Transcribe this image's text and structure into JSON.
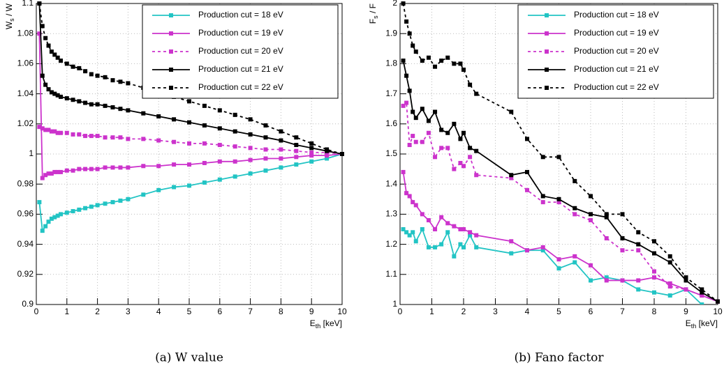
{
  "chart_data": [
    {
      "type": "line",
      "caption": "(a) W value",
      "xlabel": [
        "E",
        "th",
        " [keV]"
      ],
      "ylabel": [
        "W",
        "s",
        " / W"
      ],
      "xlim": [
        0,
        10
      ],
      "ylim": [
        0.9,
        1.1
      ],
      "xticks": [
        0,
        1,
        2,
        3,
        4,
        5,
        6,
        7,
        8,
        9,
        10
      ],
      "yticks": [
        0.9,
        0.92,
        0.94,
        0.96,
        0.98,
        1,
        1.02,
        1.04,
        1.06,
        1.08,
        1.1
      ],
      "grid": true,
      "legend": "upper right",
      "x": [
        0.1,
        0.2,
        0.3,
        0.4,
        0.5,
        0.6,
        0.7,
        0.8,
        1,
        1.2,
        1.4,
        1.6,
        1.8,
        2,
        2.25,
        2.5,
        2.75,
        3,
        3.5,
        4,
        4.5,
        5,
        5.5,
        6,
        6.5,
        7,
        7.5,
        8,
        8.5,
        9,
        9.5,
        10
      ],
      "series": [
        {
          "name": "Production cut = 18 eV",
          "color": "#22c4c4",
          "dashed": false,
          "values": [
            0.968,
            0.949,
            0.952,
            0.955,
            0.957,
            0.958,
            0.959,
            0.96,
            0.961,
            0.962,
            0.963,
            0.964,
            0.965,
            0.966,
            0.967,
            0.968,
            0.969,
            0.97,
            0.973,
            0.976,
            0.978,
            0.979,
            0.981,
            0.983,
            0.985,
            0.987,
            0.989,
            0.991,
            0.993,
            0.995,
            0.997,
            1.0
          ]
        },
        {
          "name": "Production cut = 19 eV",
          "color": "#cc33cc",
          "dashed": false,
          "values": [
            1.08,
            0.984,
            0.986,
            0.987,
            0.987,
            0.988,
            0.988,
            0.988,
            0.989,
            0.989,
            0.99,
            0.99,
            0.99,
            0.99,
            0.991,
            0.991,
            0.991,
            0.991,
            0.992,
            0.992,
            0.993,
            0.993,
            0.994,
            0.995,
            0.995,
            0.996,
            0.997,
            0.997,
            0.998,
            0.999,
            0.999,
            1.0
          ]
        },
        {
          "name": "Production cut = 20 eV",
          "color": "#cc33cc",
          "dashed": true,
          "values": [
            1.018,
            1.017,
            1.016,
            1.016,
            1.015,
            1.015,
            1.014,
            1.014,
            1.014,
            1.013,
            1.013,
            1.012,
            1.012,
            1.012,
            1.011,
            1.011,
            1.011,
            1.01,
            1.01,
            1.009,
            1.008,
            1.007,
            1.007,
            1.006,
            1.005,
            1.004,
            1.003,
            1.003,
            1.002,
            1.001,
            1.001,
            1.0
          ]
        },
        {
          "name": "Production cut = 21 eV",
          "color": "#000000",
          "dashed": false,
          "values": [
            1.1,
            1.052,
            1.046,
            1.043,
            1.041,
            1.04,
            1.039,
            1.038,
            1.037,
            1.036,
            1.035,
            1.034,
            1.033,
            1.033,
            1.032,
            1.031,
            1.03,
            1.029,
            1.027,
            1.025,
            1.023,
            1.021,
            1.019,
            1.017,
            1.015,
            1.013,
            1.011,
            1.009,
            1.006,
            1.004,
            1.002,
            1.0
          ]
        },
        {
          "name": "Production cut = 22 eV",
          "color": "#000000",
          "dashed": true,
          "values": [
            1.1,
            1.085,
            1.077,
            1.072,
            1.068,
            1.066,
            1.064,
            1.062,
            1.06,
            1.058,
            1.057,
            1.055,
            1.053,
            1.052,
            1.051,
            1.049,
            1.048,
            1.047,
            1.044,
            1.041,
            1.038,
            1.035,
            1.032,
            1.029,
            1.026,
            1.023,
            1.019,
            1.015,
            1.011,
            1.007,
            1.003,
            1.0
          ]
        }
      ]
    },
    {
      "type": "line",
      "caption": "(b) Fano factor",
      "xlabel": [
        "E",
        "th",
        " [keV]"
      ],
      "ylabel": [
        "F",
        "s",
        " / F"
      ],
      "xlim": [
        0,
        10
      ],
      "ylim": [
        1,
        2
      ],
      "xticks": [
        0,
        1,
        2,
        3,
        4,
        5,
        6,
        7,
        8,
        9,
        10
      ],
      "yticks": [
        1,
        1.1,
        1.2,
        1.3,
        1.4,
        1.5,
        1.6,
        1.7,
        1.8,
        1.9,
        2
      ],
      "grid": true,
      "legend": "upper right",
      "x": [
        0.1,
        0.2,
        0.3,
        0.4,
        0.5,
        0.7,
        0.9,
        1.1,
        1.3,
        1.5,
        1.7,
        1.9,
        2,
        2.2,
        2.4,
        3.5,
        4,
        4.5,
        5,
        5.5,
        6,
        6.5,
        7,
        7.5,
        8,
        8.5,
        9,
        9.5,
        10
      ],
      "series": [
        {
          "name": "Production cut = 18 eV",
          "color": "#22c4c4",
          "dashed": false,
          "values": [
            1.25,
            1.24,
            1.23,
            1.24,
            1.21,
            1.25,
            1.19,
            1.19,
            1.2,
            1.24,
            1.16,
            1.2,
            1.19,
            1.23,
            1.19,
            1.17,
            1.18,
            1.18,
            1.12,
            1.14,
            1.08,
            1.09,
            1.08,
            1.05,
            1.04,
            1.03,
            1.05,
            1.0,
            null
          ]
        },
        {
          "name": "Production cut = 19 eV",
          "color": "#cc33cc",
          "dashed": false,
          "values": [
            1.44,
            1.37,
            1.36,
            1.34,
            1.33,
            1.3,
            1.28,
            1.25,
            1.29,
            1.27,
            1.26,
            1.25,
            1.25,
            1.24,
            1.23,
            1.21,
            1.18,
            1.19,
            1.15,
            1.16,
            1.13,
            1.08,
            1.08,
            1.08,
            1.09,
            1.07,
            1.05,
            1.03,
            1.01
          ]
        },
        {
          "name": "Production cut = 20 eV",
          "color": "#cc33cc",
          "dashed": true,
          "values": [
            1.66,
            1.67,
            1.53,
            1.56,
            1.54,
            1.54,
            1.57,
            1.49,
            1.52,
            1.52,
            1.45,
            1.47,
            1.46,
            1.49,
            1.43,
            1.42,
            1.38,
            1.34,
            1.34,
            1.3,
            1.28,
            1.22,
            1.18,
            1.18,
            1.11,
            1.06,
            1.05,
            1.03,
            1.01
          ]
        },
        {
          "name": "Production cut = 21 eV",
          "color": "#000000",
          "dashed": false,
          "values": [
            1.81,
            1.76,
            1.71,
            1.64,
            1.62,
            1.65,
            1.61,
            1.64,
            1.58,
            1.57,
            1.6,
            1.55,
            1.57,
            1.52,
            1.51,
            1.43,
            1.44,
            1.36,
            1.35,
            1.32,
            1.3,
            1.29,
            1.22,
            1.2,
            1.17,
            1.14,
            1.08,
            1.04,
            1.01
          ]
        },
        {
          "name": "Production cut = 22 eV",
          "color": "#000000",
          "dashed": true,
          "values": [
            2.0,
            1.94,
            1.9,
            1.86,
            1.84,
            1.81,
            1.82,
            1.79,
            1.81,
            1.82,
            1.8,
            1.8,
            1.78,
            1.73,
            1.7,
            1.64,
            1.55,
            1.49,
            1.49,
            1.41,
            1.36,
            1.3,
            1.3,
            1.24,
            1.21,
            1.16,
            1.09,
            1.05,
            1.01
          ]
        }
      ]
    }
  ]
}
